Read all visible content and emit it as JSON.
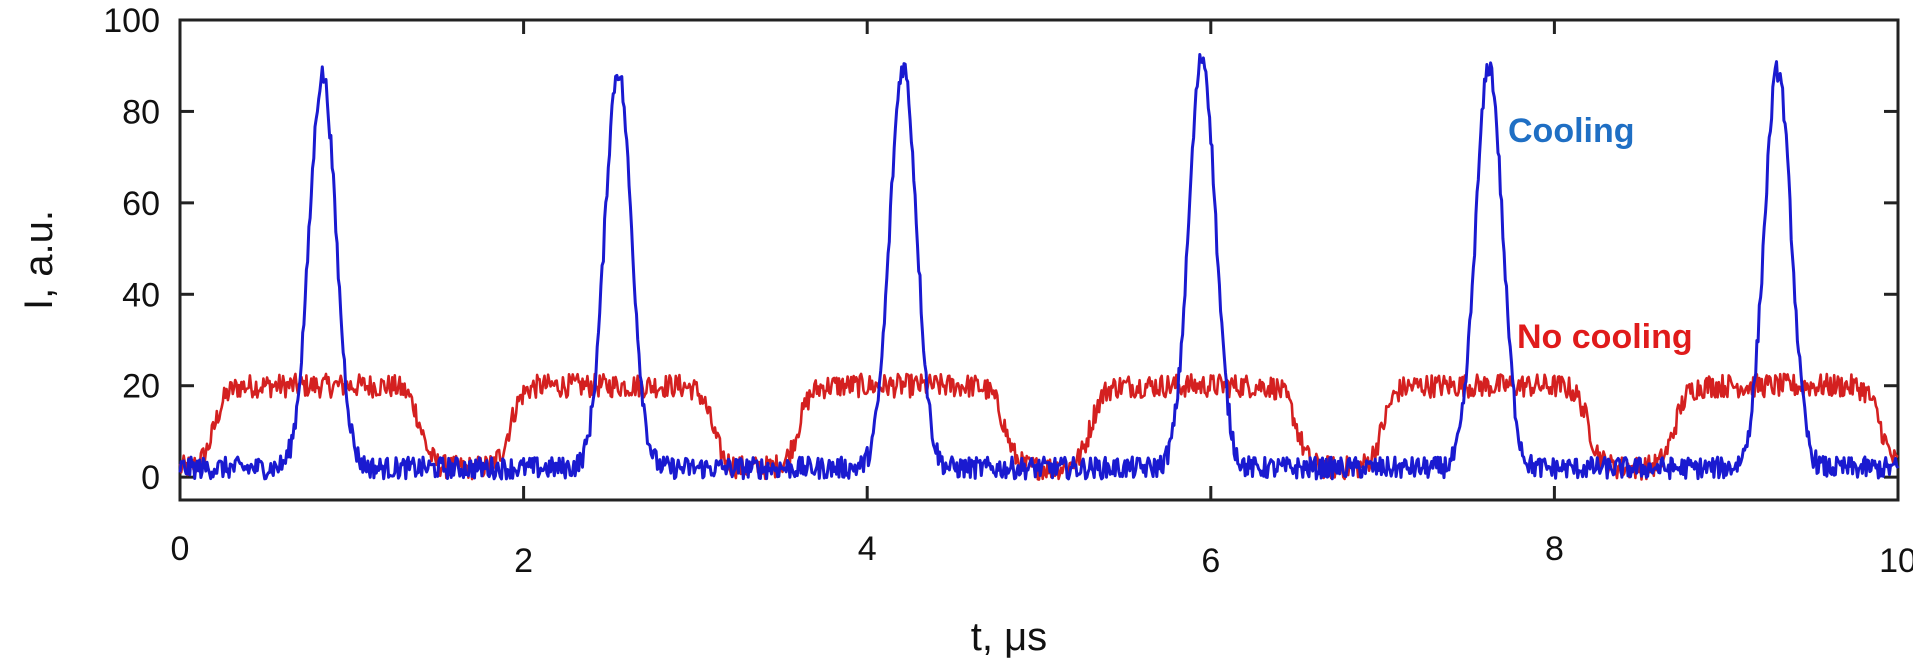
{
  "chart_data": {
    "type": "line",
    "xlabel": "t, μs",
    "ylabel": "I, a.u.",
    "xlim": [
      0,
      10
    ],
    "ylim": [
      -5,
      100
    ],
    "xticks": [
      0,
      2,
      4,
      6,
      8,
      10
    ],
    "xtick_labels": [
      "0",
      "2",
      "4",
      "6",
      "8",
      "10"
    ],
    "yticks": [
      0,
      20,
      40,
      60,
      80,
      100
    ],
    "ytick_labels": [
      "0",
      "20",
      "40",
      "60",
      "80",
      "100"
    ],
    "grid": false,
    "series": [
      {
        "name": "Cooling",
        "color": "#1a1ad0",
        "label_color": "#1f6fc4",
        "peaks": [
          {
            "center": 0.83,
            "height": 86
          },
          {
            "center": 2.55,
            "height": 87
          },
          {
            "center": 4.21,
            "height": 88
          },
          {
            "center": 5.95,
            "height": 90
          },
          {
            "center": 7.62,
            "height": 88
          },
          {
            "center": 9.3,
            "height": 87
          }
        ],
        "peak_width": 0.13,
        "baseline": 2
      },
      {
        "name": "No cooling",
        "color": "#d42020",
        "label_color": "#e01b1b",
        "plateaus": [
          {
            "start": 0.2,
            "end": 1.4,
            "level": 18
          },
          {
            "start": 1.92,
            "end": 3.1,
            "level": 18
          },
          {
            "start": 3.6,
            "end": 4.8,
            "level": 18
          },
          {
            "start": 5.3,
            "end": 6.5,
            "level": 18
          },
          {
            "start": 7.0,
            "end": 8.2,
            "level": 18
          },
          {
            "start": 8.7,
            "end": 9.9,
            "level": 18
          }
        ],
        "baseline": 2
      }
    ]
  }
}
